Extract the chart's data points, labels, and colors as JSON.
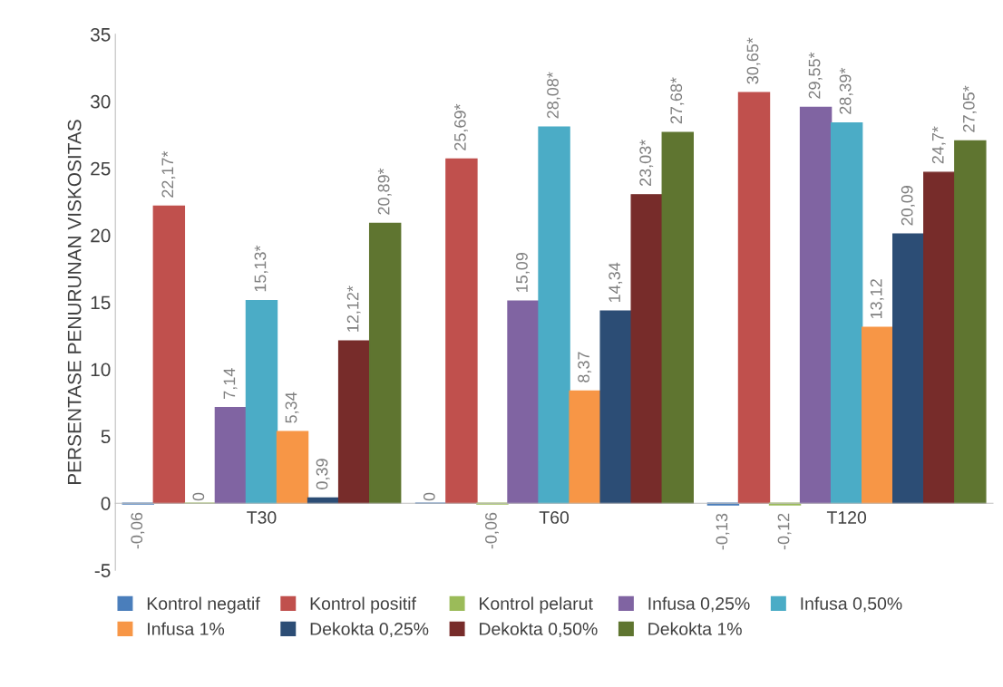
{
  "chart_data": {
    "type": "bar",
    "ylabel": "PERSENTASE PENURUNAN VISKOSITAS",
    "categories": [
      "T30",
      "T60",
      "T120"
    ],
    "series": [
      {
        "name": "Kontrol negatif",
        "color": "#4a7ebb",
        "values": [
          -0.06,
          0,
          -0.13
        ],
        "value_labels": [
          "-0,06",
          "0",
          "-0,13"
        ]
      },
      {
        "name": "Kontrol positif",
        "color": "#c0504d",
        "values": [
          22.17,
          25.69,
          30.65
        ],
        "value_labels": [
          "22,17*",
          "25,69*",
          "30,65*"
        ]
      },
      {
        "name": "Kontrol pelarut",
        "color": "#9bbb59",
        "values": [
          0,
          -0.06,
          -0.12
        ],
        "value_labels": [
          "0",
          "-0,06",
          "-0,12"
        ]
      },
      {
        "name": "Infusa 0,25%",
        "color": "#8064a2",
        "values": [
          7.14,
          15.09,
          29.55
        ],
        "value_labels": [
          "7,14",
          "15,09",
          "29,55*"
        ]
      },
      {
        "name": "Infusa 0,50%",
        "color": "#4bacc6",
        "values": [
          15.13,
          28.08,
          28.39
        ],
        "value_labels": [
          "15,13*",
          "28,08*",
          "28,39*"
        ]
      },
      {
        "name": "Infusa 1%",
        "color": "#f79646",
        "values": [
          5.34,
          8.37,
          13.12
        ],
        "value_labels": [
          "5,34",
          "8,37",
          "13,12"
        ]
      },
      {
        "name": "Dekokta 0,25%",
        "color": "#2c4d75",
        "values": [
          0.39,
          14.34,
          20.09
        ],
        "value_labels": [
          "0,39",
          "14,34",
          "20,09"
        ]
      },
      {
        "name": "Dekokta 0,50%",
        "color": "#772c2a",
        "values": [
          12.12,
          23.03,
          24.7
        ],
        "value_labels": [
          "12,12*",
          "23,03*",
          "24,7*"
        ]
      },
      {
        "name": "Dekokta 1%",
        "color": "#5f7530",
        "values": [
          20.89,
          27.68,
          27.05
        ],
        "value_labels": [
          "20,89*",
          "27,68*",
          "27,05*"
        ]
      }
    ],
    "ylim": [
      -5,
      35
    ],
    "yticks": [
      -5,
      0,
      5,
      10,
      15,
      20,
      25,
      30,
      35
    ],
    "grid": false,
    "legend": "bottom"
  }
}
